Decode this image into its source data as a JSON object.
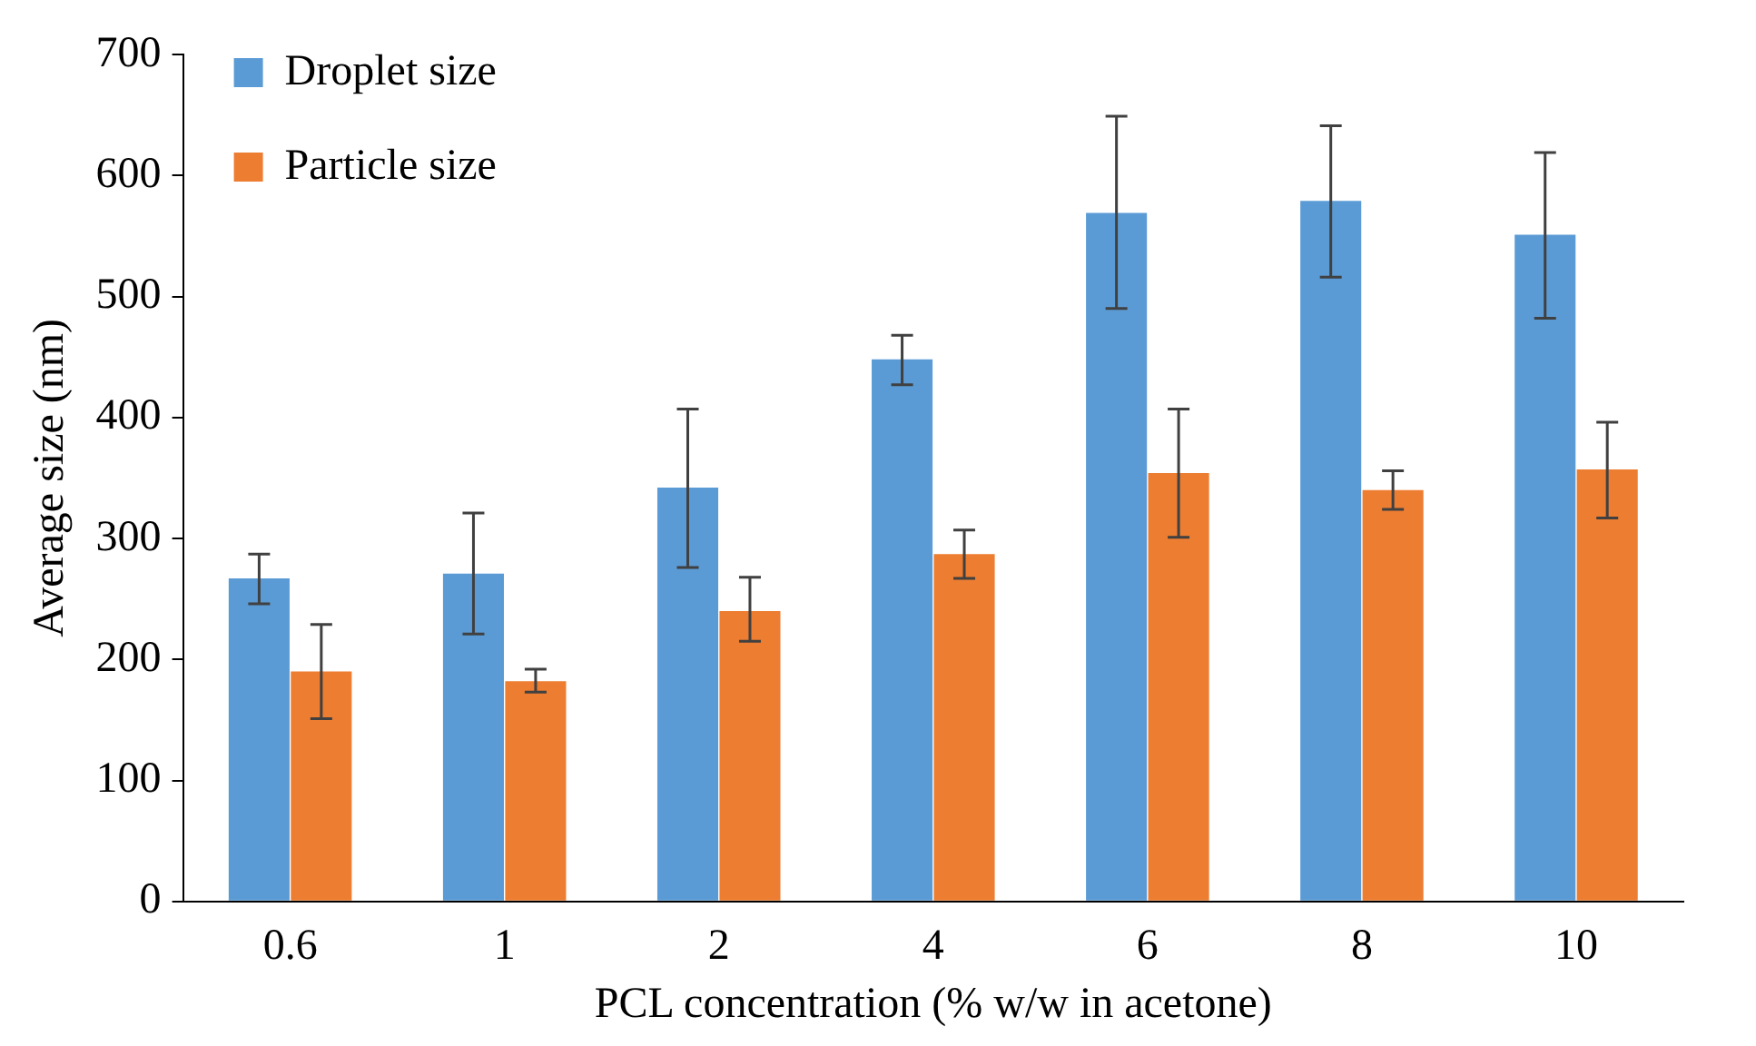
{
  "chart_data": {
    "type": "bar",
    "xlabel": "PCL concentration (% w/w in acetone)",
    "ylabel": "Average size (nm)",
    "categories": [
      "0.6",
      "1",
      "2",
      "4",
      "6",
      "8",
      "10"
    ],
    "series": [
      {
        "name": "Droplet size",
        "color": "#5b9bd5",
        "values": [
          267,
          271,
          342,
          448,
          569,
          579,
          551
        ],
        "errors": [
          [
            246,
            287
          ],
          [
            221,
            321
          ],
          [
            276,
            407
          ],
          [
            427,
            468
          ],
          [
            490,
            649
          ],
          [
            516,
            641
          ],
          [
            482,
            619
          ]
        ]
      },
      {
        "name": "Particle size",
        "color": "#ed7d31",
        "values": [
          190,
          182,
          240,
          287,
          354,
          340,
          357
        ],
        "errors": [
          [
            151,
            229
          ],
          [
            173,
            192
          ],
          [
            215,
            268
          ],
          [
            267,
            307
          ],
          [
            301,
            407
          ],
          [
            324,
            356
          ],
          [
            317,
            396
          ]
        ]
      }
    ],
    "ylim": [
      0,
      700
    ],
    "yticks": [
      0,
      100,
      200,
      300,
      400,
      500,
      600,
      700
    ],
    "grid": false,
    "legend": "top left"
  }
}
